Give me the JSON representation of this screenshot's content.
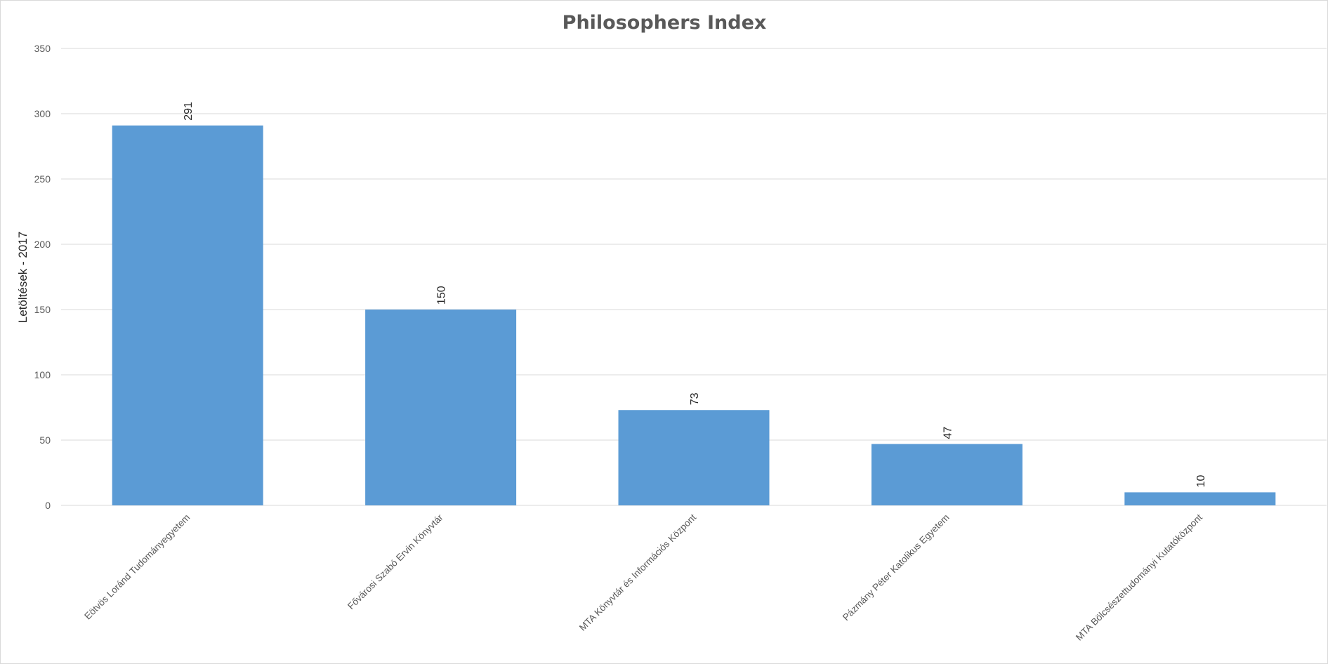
{
  "chart_data": {
    "type": "bar",
    "title": "Philosophers Index",
    "xlabel": "",
    "ylabel": "Letöltések  - 2017",
    "ylim": [
      0,
      350
    ],
    "yticks": [
      0,
      50,
      100,
      150,
      200,
      250,
      300,
      350
    ],
    "grid": true,
    "legend": "none",
    "bar_color": "#5b9bd5",
    "categories": [
      "Eötvös Loránd Tudományegyetem",
      "Fővárosi Szabó Ervin Könyvtár",
      "MTA Könyvtár és Információs Központ",
      "Pázmány Péter Katolikus Egyetem",
      "MTA Bölcsészettudományi Kutatóközpont"
    ],
    "values": [
      291,
      150,
      73,
      47,
      10
    ]
  }
}
